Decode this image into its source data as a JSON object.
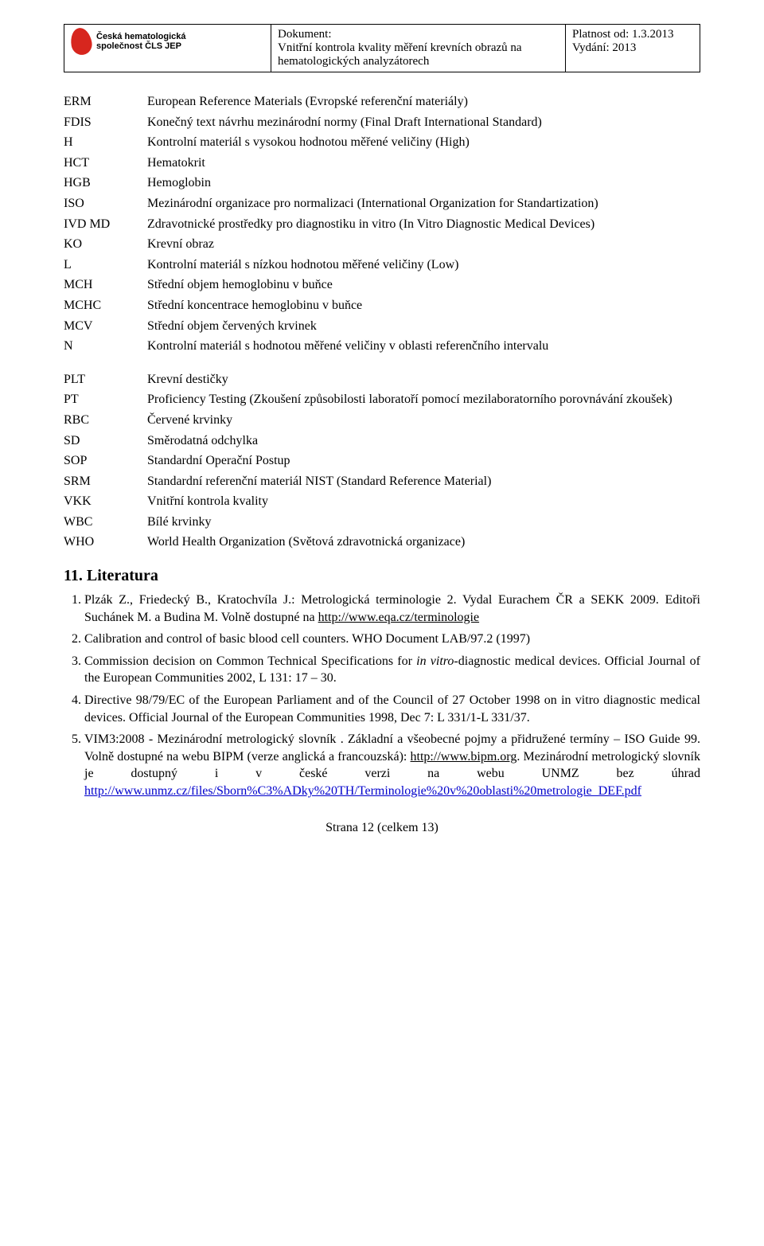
{
  "header": {
    "logo_line1": "Česká hematologická",
    "logo_line2": "společnost ČLS JEP",
    "doc_label": "Dokument:",
    "doc_title": "Vnitřní kontrola kvality měření krevních obrazů na hematologických analyzátorech",
    "valid_label": "Platnost od: 1.3.2013",
    "edition_label": "Vydání: 2013"
  },
  "abbrs": [
    {
      "k": "ERM",
      "v": "European Reference Materials (Evropské referenční materiály)"
    },
    {
      "k": "FDIS",
      "v": "Konečný text návrhu mezinárodní normy (Final Draft International Standard)"
    },
    {
      "k": "H",
      "v": "Kontrolní materiál s vysokou hodnotou měřené veličiny (High)"
    },
    {
      "k": "HCT",
      "v": "Hematokrit"
    },
    {
      "k": "HGB",
      "v": "Hemoglobin"
    },
    {
      "k": "ISO",
      "v": "Mezinárodní organizace pro normalizaci (International Organization for Standartization)"
    },
    {
      "k": "IVD MD",
      "v": "Zdravotnické prostředky pro diagnostiku in vitro (In Vitro Diagnostic Medical Devices)"
    },
    {
      "k": "KO",
      "v": "Krevní obraz"
    },
    {
      "k": "L",
      "v": "Kontrolní materiál s nízkou hodnotou měřené veličiny (Low)"
    },
    {
      "k": "MCH",
      "v": "Střední objem hemoglobinu v buňce"
    },
    {
      "k": "MCHC",
      "v": "Střední koncentrace hemoglobinu v buňce"
    },
    {
      "k": "MCV",
      "v": "Střední objem červených krvinek"
    },
    {
      "k": "N",
      "v": "Kontrolní materiál s hodnotou měřené veličiny v oblasti referenčního intervalu"
    }
  ],
  "abbrs2": [
    {
      "k": "PLT",
      "v": "Krevní destičky"
    },
    {
      "k": "PT",
      "v": "Proficiency Testing (Zkoušení způsobilosti laboratoří pomocí mezilaboratorního porovnávání zkoušek)"
    },
    {
      "k": "RBC",
      "v": "Červené krvinky"
    },
    {
      "k": "SD",
      "v": "Směrodatná odchylka"
    },
    {
      "k": "SOP",
      "v": "Standardní Operační Postup"
    },
    {
      "k": "SRM",
      "v": "Standardní referenční materiál NIST (Standard Reference Material)"
    },
    {
      "k": "VKK",
      "v": "Vnitřní kontrola kvality"
    },
    {
      "k": "WBC",
      "v": "Bílé krvinky"
    },
    {
      "k": "WHO",
      "v": "World Health Organization (Světová zdravotnická organizace)"
    }
  ],
  "section_title": "11. Literatura",
  "refs": {
    "r1a": "Plzák Z., Friedecký B., Kratochvíla J.: Metrologická terminologie 2. Vydal Eurachem ČR a SEKK 2009. Editoři Suchánek M. a Budina M. Volně dostupné na ",
    "r1link": "http://www.eqa.cz/terminologie",
    "r2": "Calibration and control of basic blood cell counters. WHO Document LAB/97.2 (1997)",
    "r3a": "Commission decision on Common Technical Specifications for ",
    "r3i": "in vitro",
    "r3b": "-diagnostic medical devices. Official Journal of the European Communities 2002, L 131: 17 – 30.",
    "r4": "Directive 98/79/EC of the European Parliament and of the Council of 27 October 1998 on in vitro diagnostic medical devices. Official Journal of the European Communities 1998, Dec 7: L 331/1-L 331/37.",
    "r5a": "VIM3:2008 - Mezinárodní metrologický slovník . Základní a všeobecné pojmy a přidružené termíny – ISO Guide 99. Volně dostupné na webu BIPM (verze anglická a francouzská): ",
    "r5link1": "http://www.bipm.org",
    "r5b": ". Mezinárodní metrologický slovník je dostupný i v české verzi na webu UNMZ bez úhrad ",
    "r5link2": "http://www.unmz.cz/files/Sborn%C3%ADky%20TH/Terminologie%20v%20oblasti%20metrologie_DEF.pdf"
  },
  "footer": "Strana 12 (celkem 13)"
}
